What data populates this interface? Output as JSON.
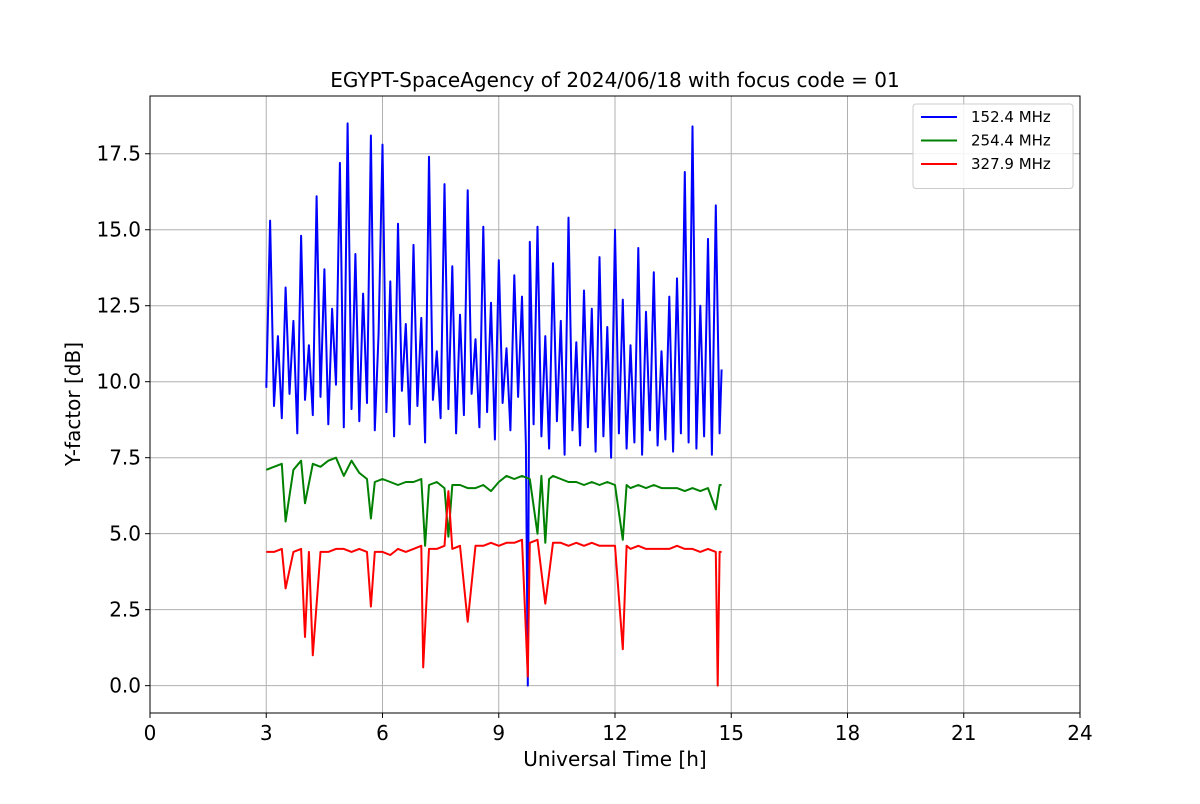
{
  "chart_data": {
    "type": "line",
    "title": "EGYPT-SpaceAgency of 2024/06/18 with focus code = 01",
    "xlabel": "Universal Time [h]",
    "ylabel": "Y-factor [dB]",
    "xlim": [
      0,
      24
    ],
    "ylim": [
      -0.9,
      19.4
    ],
    "xticks": [
      0,
      3,
      6,
      9,
      12,
      15,
      18,
      21,
      24
    ],
    "xtick_labels": [
      "0",
      "3",
      "6",
      "9",
      "12",
      "15",
      "18",
      "21",
      "24"
    ],
    "yticks": [
      0,
      2.5,
      5,
      7.5,
      10,
      12.5,
      15,
      17.5
    ],
    "ytick_labels": [
      "0.0",
      "2.5",
      "5.0",
      "7.5",
      "10.0",
      "12.5",
      "15.0",
      "17.5"
    ],
    "grid": true,
    "legend_position": "top-right",
    "series": [
      {
        "name": "152.4 MHz",
        "color": "#0000ff",
        "x": [
          3.0,
          3.1,
          3.2,
          3.3,
          3.4,
          3.5,
          3.6,
          3.7,
          3.8,
          3.9,
          4.0,
          4.1,
          4.2,
          4.3,
          4.4,
          4.5,
          4.6,
          4.7,
          4.8,
          4.9,
          5.0,
          5.1,
          5.2,
          5.3,
          5.4,
          5.5,
          5.6,
          5.7,
          5.8,
          5.9,
          6.0,
          6.1,
          6.2,
          6.3,
          6.4,
          6.5,
          6.6,
          6.7,
          6.8,
          6.9,
          7.0,
          7.1,
          7.2,
          7.3,
          7.4,
          7.5,
          7.6,
          7.7,
          7.8,
          7.9,
          8.0,
          8.1,
          8.2,
          8.3,
          8.4,
          8.5,
          8.6,
          8.7,
          8.8,
          8.9,
          9.0,
          9.1,
          9.2,
          9.3,
          9.4,
          9.5,
          9.6,
          9.7,
          9.75,
          9.8,
          9.9,
          10.0,
          10.1,
          10.2,
          10.3,
          10.4,
          10.5,
          10.6,
          10.7,
          10.8,
          10.9,
          11.0,
          11.1,
          11.2,
          11.3,
          11.4,
          11.5,
          11.6,
          11.7,
          11.8,
          11.9,
          12.0,
          12.1,
          12.2,
          12.3,
          12.4,
          12.5,
          12.6,
          12.7,
          12.8,
          12.9,
          13.0,
          13.1,
          13.2,
          13.3,
          13.4,
          13.5,
          13.6,
          13.7,
          13.8,
          13.9,
          14.0,
          14.1,
          14.2,
          14.3,
          14.4,
          14.5,
          14.6,
          14.7,
          14.75
        ],
        "y": [
          9.8,
          15.3,
          9.2,
          11.5,
          8.8,
          13.1,
          9.6,
          12.0,
          8.3,
          14.8,
          9.4,
          11.2,
          8.9,
          16.1,
          9.5,
          13.7,
          8.6,
          12.4,
          9.9,
          17.2,
          8.5,
          18.5,
          9.1,
          14.2,
          8.7,
          12.9,
          9.3,
          18.1,
          8.4,
          11.6,
          17.8,
          9.0,
          13.3,
          8.2,
          15.2,
          9.7,
          11.9,
          8.6,
          14.5,
          9.2,
          12.1,
          8.0,
          17.4,
          9.4,
          11.0,
          8.8,
          16.5,
          9.1,
          13.8,
          8.3,
          12.2,
          8.9,
          16.3,
          9.6,
          11.4,
          8.5,
          15.1,
          9.0,
          12.6,
          8.1,
          14.0,
          9.3,
          11.1,
          8.4,
          13.5,
          9.5,
          12.8,
          7.9,
          0.0,
          14.6,
          8.6,
          15.1,
          8.2,
          11.5,
          7.8,
          13.9,
          8.7,
          12.0,
          7.6,
          15.4,
          8.4,
          11.3,
          7.9,
          13.0,
          8.5,
          12.4,
          7.7,
          14.1,
          8.2,
          11.8,
          7.5,
          15.0,
          8.3,
          12.7,
          7.8,
          11.2,
          8.0,
          14.4,
          7.6,
          12.3,
          8.4,
          13.6,
          7.9,
          11.0,
          8.1,
          12.8,
          7.7,
          13.4,
          8.3,
          16.9,
          8.0,
          18.4,
          7.8,
          12.5,
          8.2,
          14.7,
          7.6,
          15.8,
          8.3,
          10.4
        ]
      },
      {
        "name": "254.4 MHz",
        "color": "#008000",
        "x": [
          3.0,
          3.2,
          3.4,
          3.5,
          3.7,
          3.9,
          4.0,
          4.2,
          4.4,
          4.6,
          4.8,
          5.0,
          5.2,
          5.4,
          5.6,
          5.7,
          5.8,
          6.0,
          6.2,
          6.4,
          6.6,
          6.8,
          7.0,
          7.1,
          7.2,
          7.4,
          7.6,
          7.7,
          7.8,
          8.0,
          8.2,
          8.4,
          8.6,
          8.8,
          9.0,
          9.2,
          9.4,
          9.6,
          9.8,
          10.0,
          10.1,
          10.2,
          10.3,
          10.4,
          10.6,
          10.8,
          11.0,
          11.2,
          11.4,
          11.6,
          11.8,
          12.0,
          12.2,
          12.3,
          12.4,
          12.6,
          12.8,
          13.0,
          13.2,
          13.4,
          13.6,
          13.8,
          14.0,
          14.2,
          14.4,
          14.6,
          14.7,
          14.75
        ],
        "y": [
          7.1,
          7.2,
          7.3,
          5.4,
          7.1,
          7.4,
          6.0,
          7.3,
          7.2,
          7.4,
          7.5,
          6.9,
          7.4,
          7.0,
          6.8,
          5.5,
          6.7,
          6.8,
          6.7,
          6.6,
          6.7,
          6.7,
          6.8,
          4.6,
          6.6,
          6.7,
          6.5,
          4.9,
          6.6,
          6.6,
          6.5,
          6.5,
          6.6,
          6.4,
          6.7,
          6.9,
          6.8,
          6.9,
          6.8,
          5.0,
          6.9,
          4.7,
          6.8,
          6.9,
          6.8,
          6.7,
          6.7,
          6.6,
          6.7,
          6.6,
          6.7,
          6.6,
          4.8,
          6.6,
          6.5,
          6.6,
          6.5,
          6.6,
          6.5,
          6.5,
          6.5,
          6.4,
          6.5,
          6.4,
          6.5,
          5.8,
          6.6,
          6.6
        ]
      },
      {
        "name": "327.9 MHz",
        "color": "#ff0000",
        "x": [
          3.0,
          3.2,
          3.4,
          3.5,
          3.7,
          3.9,
          4.0,
          4.1,
          4.2,
          4.4,
          4.6,
          4.8,
          5.0,
          5.2,
          5.4,
          5.6,
          5.7,
          5.8,
          6.0,
          6.2,
          6.4,
          6.6,
          6.8,
          7.0,
          7.05,
          7.2,
          7.4,
          7.6,
          7.7,
          7.8,
          8.0,
          8.2,
          8.4,
          8.6,
          8.8,
          9.0,
          9.2,
          9.4,
          9.6,
          9.75,
          9.8,
          10.0,
          10.2,
          10.4,
          10.6,
          10.8,
          11.0,
          11.2,
          11.4,
          11.6,
          11.8,
          12.0,
          12.2,
          12.3,
          12.4,
          12.6,
          12.8,
          13.0,
          13.2,
          13.4,
          13.6,
          13.8,
          14.0,
          14.2,
          14.4,
          14.6,
          14.65,
          14.7,
          14.75
        ],
        "y": [
          4.4,
          4.4,
          4.5,
          3.2,
          4.4,
          4.5,
          1.6,
          4.4,
          1.0,
          4.4,
          4.4,
          4.5,
          4.5,
          4.4,
          4.5,
          4.4,
          2.6,
          4.4,
          4.4,
          4.3,
          4.5,
          4.4,
          4.5,
          4.6,
          0.6,
          4.5,
          4.5,
          4.6,
          6.4,
          4.5,
          4.6,
          2.1,
          4.6,
          4.6,
          4.7,
          4.6,
          4.7,
          4.7,
          4.8,
          0.3,
          4.7,
          4.8,
          2.7,
          4.7,
          4.7,
          4.6,
          4.7,
          4.6,
          4.7,
          4.6,
          4.6,
          4.6,
          1.2,
          4.6,
          4.5,
          4.6,
          4.5,
          4.5,
          4.5,
          4.5,
          4.6,
          4.5,
          4.5,
          4.4,
          4.5,
          4.4,
          0.0,
          4.4,
          4.4
        ]
      }
    ]
  }
}
